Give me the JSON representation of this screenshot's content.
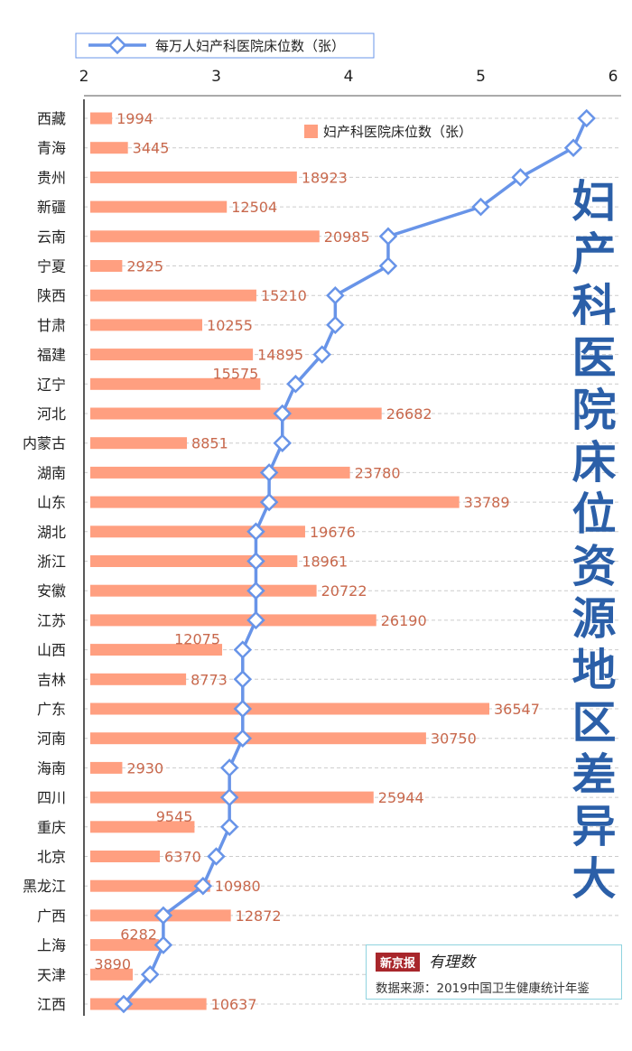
{
  "title_vertical": "妇产科医院床位资源地区差异大",
  "source": {
    "brand": "新京报",
    "brand_sub": "有理数",
    "text": "数据来源：2019中国卫生健康统计年鉴"
  },
  "colors": {
    "bar": "#ff9f80",
    "line": "#6894e8",
    "bar_label": "#c8684c",
    "title": "#2b5fa8",
    "grid": "#cccccc",
    "source_border": "#8fd3df"
  },
  "chart_data": {
    "type": "bar+line",
    "categories": [
      "西藏",
      "青海",
      "贵州",
      "新疆",
      "云南",
      "宁夏",
      "陕西",
      "甘肃",
      "福建",
      "辽宁",
      "河北",
      "内蒙古",
      "湖南",
      "山东",
      "湖北",
      "浙江",
      "安徽",
      "江苏",
      "山西",
      "吉林",
      "广东",
      "河南",
      "海南",
      "四川",
      "重庆",
      "北京",
      "黑龙江",
      "广西",
      "上海",
      "天津",
      "江西"
    ],
    "bar_series": {
      "name": "妇产科医院床位数（张）",
      "values": [
        1994,
        3445,
        18923,
        12504,
        20985,
        2925,
        15210,
        10255,
        14895,
        15575,
        26682,
        8851,
        23780,
        33789,
        19676,
        18961,
        20722,
        26190,
        12075,
        8773,
        36547,
        30750,
        2930,
        25944,
        9545,
        6370,
        10980,
        12872,
        6282,
        3890,
        10637
      ],
      "xlim": [
        0,
        40000
      ]
    },
    "line_series": {
      "name": "每万人妇产科医院床位数（张）",
      "values": [
        5.8,
        5.7,
        5.3,
        5.0,
        4.3,
        4.3,
        3.9,
        3.9,
        3.8,
        3.6,
        3.5,
        3.5,
        3.4,
        3.4,
        3.3,
        3.3,
        3.3,
        3.3,
        3.2,
        3.2,
        3.2,
        3.2,
        3.1,
        3.1,
        3.1,
        3.0,
        2.9,
        2.6,
        2.6,
        2.5,
        2.3
      ],
      "xlim": [
        2,
        6
      ],
      "ticks": [
        "2",
        "3",
        "4",
        "5",
        "6"
      ]
    },
    "legend_line": "每万人妇产科医院床位数（张）",
    "legend_bar": "妇产科医院床位数（张）",
    "raised_labels": [
      "辽宁",
      "山西",
      "重庆",
      "上海",
      "天津"
    ]
  }
}
